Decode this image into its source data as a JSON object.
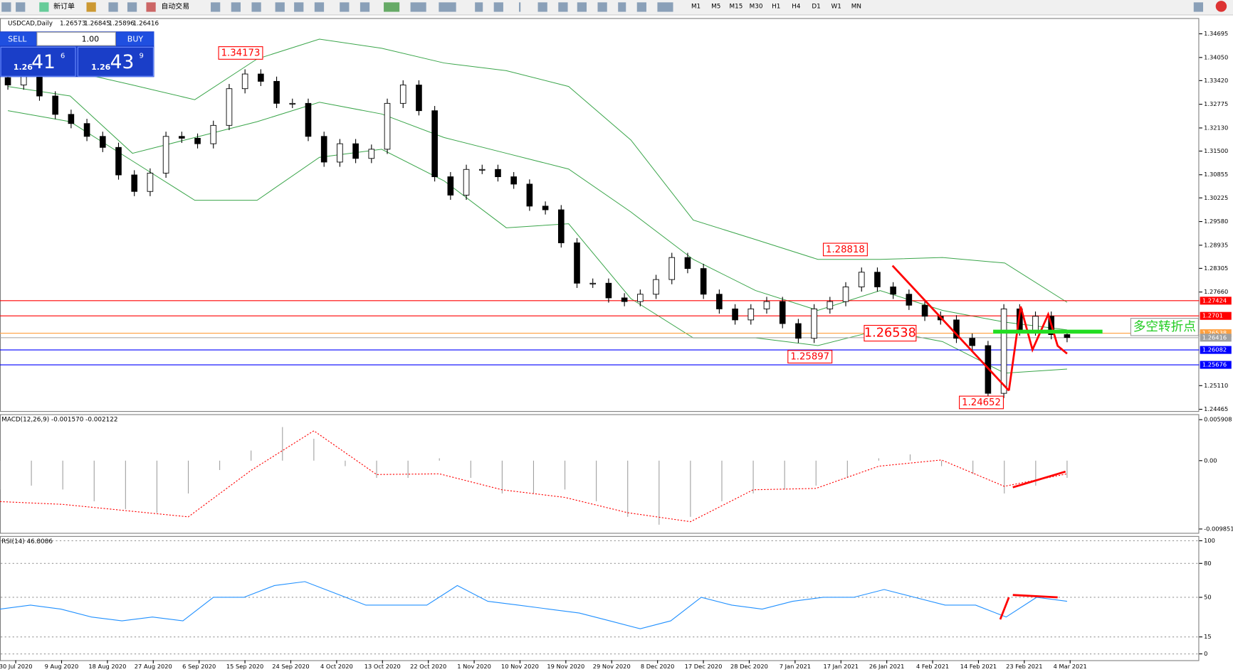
{
  "toolbar": {
    "buttons": [
      "新订单",
      "自动交易"
    ],
    "periods": [
      "M1",
      "M5",
      "M15",
      "M30",
      "H1",
      "H4",
      "D1",
      "W1",
      "MN"
    ]
  },
  "trade_panel": {
    "sell": "SELL",
    "buy": "BUY",
    "lots": "1.00",
    "bid": [
      "1.26",
      "41",
      "6"
    ],
    "ask": [
      "1.26",
      "43",
      "9"
    ]
  },
  "chart_data": [
    {
      "type": "candlestick",
      "title": "USDCAD,Daily",
      "quote": [
        "1.26573",
        "1.26845",
        "1.25896",
        "1.26416"
      ],
      "categories": [
        "30 Jul 2020",
        "9 Aug 2020",
        "18 Aug 2020",
        "27 Aug 2020",
        "6 Sep 2020",
        "15 Sep 2020",
        "24 Sep 2020",
        "4 Oct 2020",
        "13 Oct 2020",
        "22 Oct 2020",
        "1 Nov 2020",
        "10 Nov 2020",
        "19 Nov 2020",
        "29 Nov 2020",
        "8 Dec 2020",
        "17 Dec 2020",
        "28 Dec 2020",
        "7 Jan 2021",
        "17 Jan 2021",
        "26 Jan 2021",
        "4 Feb 2021",
        "14 Feb 2021",
        "23 Feb 2021",
        "4 Mar 2021"
      ],
      "open": [
        1.335,
        1.333,
        1.3355,
        1.33,
        1.325,
        1.3225,
        1.319,
        1.316,
        1.3085,
        1.304,
        1.309,
        1.319,
        1.3185,
        1.317,
        1.322,
        1.332,
        1.336,
        1.334,
        1.328,
        1.328,
        1.319,
        1.312,
        1.317,
        1.313,
        1.3155,
        1.328,
        1.333,
        1.326,
        1.308,
        1.303,
        1.31,
        1.31,
        1.308,
        1.306,
        1.3,
        1.299,
        1.29,
        1.279,
        1.279,
        1.275,
        1.274,
        1.276,
        1.28,
        1.286,
        1.283,
        1.276,
        1.272,
        1.269,
        1.272,
        1.274,
        1.268,
        1.264,
        1.272,
        1.274,
        1.278,
        1.282,
        1.278,
        1.276,
        1.273,
        1.27,
        1.269,
        1.264,
        1.262,
        1.249,
        1.272,
        1.266,
        1.27,
        1.265
      ],
      "close": [
        1.333,
        1.3355,
        1.33,
        1.325,
        1.3225,
        1.319,
        1.316,
        1.3085,
        1.304,
        1.309,
        1.319,
        1.3185,
        1.317,
        1.322,
        1.332,
        1.336,
        1.334,
        1.328,
        1.328,
        1.319,
        1.312,
        1.317,
        1.313,
        1.3155,
        1.328,
        1.333,
        1.326,
        1.308,
        1.303,
        1.31,
        1.31,
        1.308,
        1.306,
        1.3,
        1.299,
        1.29,
        1.279,
        1.279,
        1.275,
        1.274,
        1.276,
        1.28,
        1.286,
        1.283,
        1.276,
        1.272,
        1.269,
        1.272,
        1.274,
        1.268,
        1.264,
        1.272,
        1.274,
        1.278,
        1.282,
        1.278,
        1.276,
        1.273,
        1.27,
        1.269,
        1.264,
        1.262,
        1.249,
        1.272,
        1.266,
        1.27,
        1.265,
        1.2642
      ],
      "bands": [
        {
          "color": "#3aa54a",
          "values": [
            1.337,
            1.3369,
            1.333,
            1.329,
            1.3401,
            1.3455,
            1.343,
            1.339,
            1.3369,
            1.3326,
            1.318,
            1.2962,
            1.2909,
            1.2855,
            1.2855,
            1.286,
            1.2845,
            1.2738
          ]
        },
        {
          "color": "#3aa54a",
          "values": [
            1.3326,
            1.33,
            1.3144,
            1.3187,
            1.323,
            1.3283,
            1.3251,
            1.3187,
            1.3144,
            1.3101,
            1.2984,
            1.2855,
            1.277,
            1.2716,
            1.277,
            1.2716,
            1.2684,
            1.2663
          ]
        },
        {
          "color": "#3aa54a",
          "values": [
            1.326,
            1.323,
            1.3123,
            1.3016,
            1.3016,
            1.3133,
            1.3155,
            1.3069,
            1.2941,
            1.2952,
            1.2748,
            1.2641,
            1.2641,
            1.262,
            1.2663,
            1.2631,
            1.2545,
            1.2556
          ]
        }
      ],
      "levels": [
        {
          "value": 1.27424,
          "color": "#ff0000"
        },
        {
          "value": 1.2701,
          "color": "#ff0000"
        },
        {
          "value": 1.26538,
          "color": "#ffa040"
        },
        {
          "value": 1.26416,
          "color": "#a0a0a0"
        },
        {
          "value": 1.26082,
          "color": "#0000ff"
        },
        {
          "value": 1.25676,
          "color": "#0000ff"
        }
      ],
      "annotations": [
        1.34173,
        1.28818,
        1.26538,
        1.25897,
        1.24652
      ],
      "note": "多空转折点",
      "ylim": [
        1.24417,
        1.35102
      ],
      "yticks": [
        1.34695,
        {
          "value": 1.3405,
          "label": "1.34050"
        },
        {
          "value": 1.3342,
          "label": "1.33420"
        },
        1.32775,
        {
          "value": 1.3213,
          "label": "1.32130"
        },
        {
          "value": 1.315,
          "label": "1.31500"
        },
        1.30855,
        1.30225,
        {
          "value": 1.2958,
          "label": "1.29580"
        },
        1.28935,
        1.28305,
        {
          "value": 1.2766,
          "label": "1.27660"
        },
        {
          "value": 1.2511,
          "label": "1.25110"
        },
        1.24465
      ]
    },
    {
      "type": "histogram-line",
      "title": "MACD(12,26,9) -0.001570 -0.002122",
      "values": [
        -0.00416,
        -0.0036,
        -0.00416,
        -0.00585,
        -0.00698,
        -0.00754,
        -0.00473,
        -0.00135,
        0.00146,
        0.00484,
        0.00315,
        -0.00079,
        -0.00248,
        -0.00248,
        0.00034,
        -0.00248,
        -0.00473,
        -0.00473,
        -0.00416,
        -0.00585,
        -0.0081,
        -0.00923,
        -0.0081,
        -0.00585,
        -0.00473,
        -0.00416,
        -0.0036,
        -0.00248,
        0.00034,
        0.0009,
        -0.00079,
        -0.00191,
        -0.00473,
        -0.0036,
        -0.00248
      ],
      "signal": [
        -0.0059,
        -0.0063,
        -0.0072,
        -0.0081,
        -0.0014,
        0.0043,
        -0.002,
        -0.0019,
        -0.0042,
        -0.0053,
        -0.0075,
        -0.0088,
        -0.0042,
        -0.004,
        -0.0008,
        0.0001,
        -0.0037,
        -0.0019
      ],
      "color": "#a0a0a0",
      "signal_color": "#ff0000",
      "ylim": [
        -0.01041,
        0.00658
      ],
      "yticks": [
        0.005908,
        {
          "value": 0,
          "label": "0.00"
        },
        -0.009851
      ]
    },
    {
      "type": "line",
      "title": "RSI(14) 46.8086",
      "values": [
        39.6,
        43.1,
        39.6,
        32.6,
        29.2,
        32.6,
        29.2,
        50,
        50,
        60.4,
        63.9,
        53.5,
        43.1,
        43.1,
        43.1,
        60.4,
        46.5,
        43.1,
        39.6,
        36.1,
        29.2,
        22.2,
        29.2,
        50,
        43.1,
        39.6,
        46.5,
        50,
        50,
        56.9,
        50,
        43.1,
        43.1,
        32.6,
        50,
        46.5
      ],
      "color": "#2090ff",
      "ylim": [
        -5.6,
        103.5
      ],
      "yticks": [
        100,
        80,
        50,
        15,
        0
      ]
    }
  ]
}
